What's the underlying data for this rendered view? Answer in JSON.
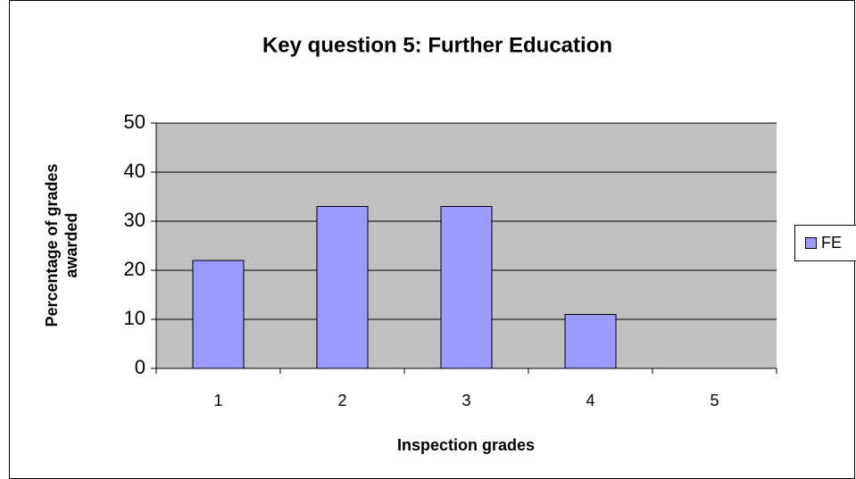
{
  "chart_data": {
    "type": "bar",
    "title": "Key question 5: Further Education",
    "xlabel": "Inspection grades",
    "ylabel": [
      "Percentage of grades",
      "awarded"
    ],
    "categories": [
      "1",
      "2",
      "3",
      "4",
      "5"
    ],
    "series": [
      {
        "name": "FE",
        "color": "#9999ff",
        "values": [
          22,
          33,
          33,
          11,
          0
        ]
      }
    ],
    "ylim": [
      0,
      50
    ],
    "yticks": [
      0,
      10,
      20,
      30,
      40,
      50
    ],
    "grid": true,
    "legend": "right"
  }
}
